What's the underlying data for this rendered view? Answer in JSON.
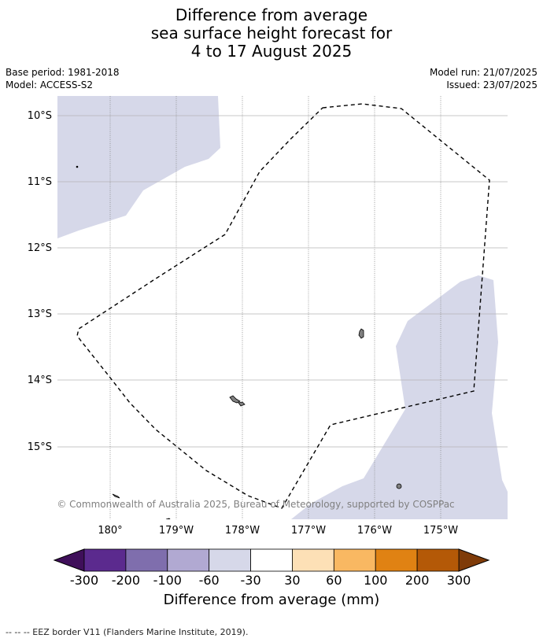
{
  "title": {
    "line1": "Difference from average",
    "line2": "sea surface height forecast for",
    "line3": "4 to 17 August 2025"
  },
  "info": {
    "base_period": "Base period: 1981-2018",
    "model": "Model: ACCESS-S2",
    "model_run": "Model run: 21/07/2025",
    "issued": "Issued: 23/07/2025"
  },
  "map": {
    "lat_labels": [
      "10°S",
      "11°S",
      "12°S",
      "13°S",
      "14°S",
      "15°S"
    ],
    "lon_labels": [
      "180°",
      "179°W",
      "178°W",
      "177°W",
      "176°W",
      "175°W"
    ],
    "attribution": "© Commonwealth of Australia 2025, Bureau of Meteorology, supported by COSPPac",
    "colors": {
      "shaded_anomaly": "#d6d8e9",
      "eez_border": "#000000",
      "land": "#808080"
    }
  },
  "colorbar": {
    "tick_labels": [
      "-300",
      "-200",
      "-100",
      "-60",
      "-30",
      "30",
      "60",
      "100",
      "200",
      "300"
    ],
    "colors": [
      "#3f0f5a",
      "#5b2a8e",
      "#7f6ead",
      "#b1a9d2",
      "#d6d8e9",
      "#ffffff",
      "#fde0b6",
      "#f9b862",
      "#e08213",
      "#b45907",
      "#7f3b08"
    ],
    "label": "Difference from average (mm)"
  },
  "footnote": "--  --  -- EEZ border V11 (Flanders Marine Institute, 2019)."
}
